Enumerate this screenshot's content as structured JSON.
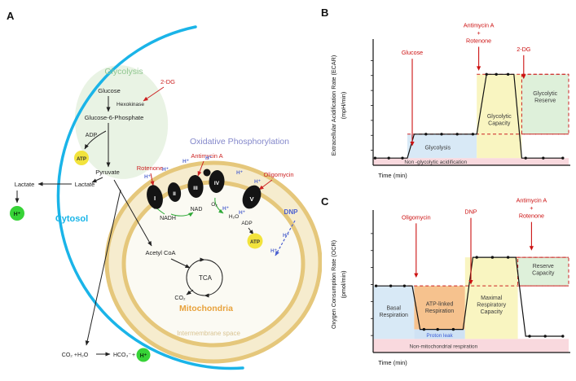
{
  "panel_a": {
    "letter": "A",
    "glycolysis_title": "Glycolysis",
    "glucose": "Glucose",
    "two_dg": "2-DG",
    "hexokinase": "Hexokinase",
    "g6p": "Glucose-6-Phosphate",
    "adp_glycolysis": "ADP",
    "atp_glycolysis": "ATP",
    "pyruvate": "Pyruvate",
    "lactate_inside": "Lactate",
    "lactate_outside": "Lactate",
    "h_plus": "H⁺",
    "cytosol": "Cytosol",
    "oxphos_title": "Oxidative Phosphorylation",
    "rotenone": "Rotenone",
    "antimycin_a": "Antimycin A",
    "oligomycin": "Oligomycin",
    "dnp": "DNP",
    "complex_i": "I",
    "complex_ii": "II",
    "complex_iii": "III",
    "complex_iv": "IV",
    "complex_v": "V",
    "nadh": "NADH",
    "nad": "NAD",
    "o2": "O₂",
    "h2o": "H₂O",
    "adp_oxphos": "ADP",
    "atp_oxphos": "ATP",
    "acetyl_coa": "Acetyl CoA",
    "tca": "TCA",
    "co2": "CO₂",
    "mitochondria": "Mitochondria",
    "intermembrane_space": "Intermembrane space",
    "bicarb_left": "CO₂ +H₂O",
    "bicarb_right": "HCO₃⁻",
    "bicarb_plus": "+"
  },
  "chart_data": [
    {
      "panel": "B",
      "type": "line",
      "ylabel": "Extracellular Acidification Rate (ECAR)",
      "yunits": "(mpH/min)",
      "xlabel": "Time (min)",
      "xlim": [
        0,
        100
      ],
      "ylim": [
        0,
        100
      ],
      "points": [
        [
          1,
          6
        ],
        [
          8,
          6
        ],
        [
          15,
          6
        ],
        [
          17.5,
          6
        ],
        [
          21,
          26
        ],
        [
          27,
          26
        ],
        [
          35,
          26
        ],
        [
          43,
          26
        ],
        [
          51,
          26
        ],
        [
          53,
          26
        ],
        [
          58,
          76
        ],
        [
          63,
          76
        ],
        [
          69,
          76
        ],
        [
          72,
          76
        ],
        [
          76,
          6
        ],
        [
          78,
          6
        ],
        [
          87,
          6
        ],
        [
          97,
          6
        ]
      ],
      "marker_points": [
        [
          1,
          6
        ],
        [
          8,
          6
        ],
        [
          15,
          6
        ],
        [
          27,
          26
        ],
        [
          35,
          26
        ],
        [
          43,
          26
        ],
        [
          51,
          26
        ],
        [
          58,
          76
        ],
        [
          63,
          76
        ],
        [
          69,
          76
        ],
        [
          78,
          6
        ],
        [
          87,
          6
        ],
        [
          97,
          6
        ]
      ],
      "regions": [
        {
          "label": "Non -glycolytic acidification",
          "x0": 0,
          "x1": 100,
          "y0": 0,
          "y1": 6,
          "fill": "#f9d9de",
          "label_x": 32,
          "label_y": 2.8,
          "label_color": "#3a3a3a",
          "label_size": 6.4,
          "dashed": false
        },
        {
          "label": "Glycolysis",
          "x0": 17.5,
          "x1": 53,
          "y0": 6,
          "y1": 26,
          "fill": "#d8e9f6",
          "label_x": 33,
          "label_y": 14.5,
          "label_color": "#3a3a3a",
          "label_size": 7,
          "dashed": false
        },
        {
          "label": "Glycolytic\nCapacity",
          "x0": 53,
          "x1": 76,
          "y0": 6,
          "y1": 76,
          "fill": "#f9f5c1",
          "label_x": 64.5,
          "label_y": 38,
          "label_color": "#3a3a3a",
          "label_size": 7,
          "dashed": false
        },
        {
          "label": "Glycolytic\nReserve",
          "x0": 76,
          "x1": 100,
          "y0": 26,
          "y1": 76,
          "fill": "#def0da",
          "label_x": 88,
          "label_y": 57,
          "label_color": "#3a3a3a",
          "label_size": 7,
          "dashed": true
        }
      ],
      "dashed_lines": [
        {
          "y": 26,
          "x0": 17.5,
          "x1": 100
        },
        {
          "y": 76,
          "x0": 53,
          "x1": 100
        }
      ],
      "injections": [
        {
          "label_lines": [
            "Glucose"
          ],
          "x": 20,
          "start_y": 89,
          "tip_y": 16
        },
        {
          "label_lines": [
            "Antimycin A",
            "+",
            "Rotenone"
          ],
          "x": 54,
          "start_y": 99,
          "tip_y": 79
        },
        {
          "label_lines": [
            "2-DG"
          ],
          "x": 77,
          "start_y": 92,
          "tip_y": 72
        }
      ]
    },
    {
      "panel": "C",
      "type": "line",
      "ylabel": "Oxygen Consumption Rate (OCR)",
      "yunits": "(pmol/min)",
      "xlabel": "Time (min)",
      "xlim": [
        0,
        100
      ],
      "ylim": [
        0,
        100
      ],
      "points": [
        [
          1.5,
          49
        ],
        [
          9,
          49
        ],
        [
          16,
          49
        ],
        [
          20,
          49
        ],
        [
          24,
          17
        ],
        [
          26,
          17
        ],
        [
          33,
          17
        ],
        [
          41,
          17
        ],
        [
          46,
          17
        ],
        [
          51,
          70
        ],
        [
          53,
          70
        ],
        [
          61,
          70
        ],
        [
          69,
          70
        ],
        [
          73,
          70
        ],
        [
          78,
          12
        ],
        [
          80,
          12
        ],
        [
          88,
          12
        ],
        [
          97,
          12
        ]
      ],
      "marker_points": [
        [
          1.5,
          49
        ],
        [
          9,
          49
        ],
        [
          16,
          49
        ],
        [
          26,
          17
        ],
        [
          33,
          17
        ],
        [
          41,
          17
        ],
        [
          53,
          70
        ],
        [
          61,
          70
        ],
        [
          69,
          70
        ],
        [
          80,
          12
        ],
        [
          88,
          12
        ],
        [
          97,
          12
        ]
      ],
      "regions": [
        {
          "label": "Non-mitochondrial respiration",
          "x0": 0,
          "x1": 100,
          "y0": 0,
          "y1": 10,
          "fill": "#f9d9de",
          "label_x": 36,
          "label_y": 4.5,
          "label_color": "#3a3a3a",
          "label_size": 6.4,
          "dashed": false
        },
        {
          "label": "Basal\nRespiration",
          "x0": 0,
          "x1": 21,
          "y0": 10,
          "y1": 49,
          "fill": "#d8e9f6",
          "label_x": 10.5,
          "label_y": 30,
          "label_color": "#3a3a3a",
          "label_size": 7,
          "dashed": false
        },
        {
          "label": "ATP-linked\nRespiration",
          "x0": 21,
          "x1": 47,
          "y0": 17,
          "y1": 49,
          "fill": "#f6c28e",
          "label_x": 34,
          "label_y": 33,
          "label_color": "#3a3a3a",
          "label_size": 7,
          "dashed": false
        },
        {
          "label": "Proton leak",
          "x0": 21,
          "x1": 47,
          "y0": 10,
          "y1": 17,
          "fill": "#cfe2f4",
          "label_x": 34,
          "label_y": 12.5,
          "label_color": "#3b5bd6",
          "label_size": 6.4,
          "dashed": false
        },
        {
          "label": "Maximal\nRespiratory\nCapacity",
          "x0": 47,
          "x1": 74,
          "y0": 10,
          "y1": 70,
          "fill": "#f9f5c1",
          "label_x": 60.5,
          "label_y": 35,
          "label_color": "#3a3a3a",
          "label_size": 7,
          "dashed": false
        },
        {
          "label": "Reserve\nCapacity",
          "x0": 74,
          "x1": 100,
          "y0": 49,
          "y1": 70,
          "fill": "#def0da",
          "label_x": 87,
          "label_y": 61,
          "label_color": "#3a3a3a",
          "label_size": 7,
          "dashed": true
        }
      ],
      "dashed_lines": [
        {
          "y": 49,
          "x0": 18,
          "x1": 100
        },
        {
          "y": 70,
          "x0": 73,
          "x1": 100
        }
      ],
      "injections": [
        {
          "label_lines": [
            "Oligomycin"
          ],
          "x": 22,
          "start_y": 95,
          "tip_y": 55
        },
        {
          "label_lines": [
            "DNP"
          ],
          "x": 50,
          "start_y": 99,
          "tip_y": 50
        },
        {
          "label_lines": [
            "Antimycin A",
            "+",
            "Rotenone"
          ],
          "x": 81,
          "start_y": 96,
          "tip_y": 75
        }
      ]
    }
  ]
}
